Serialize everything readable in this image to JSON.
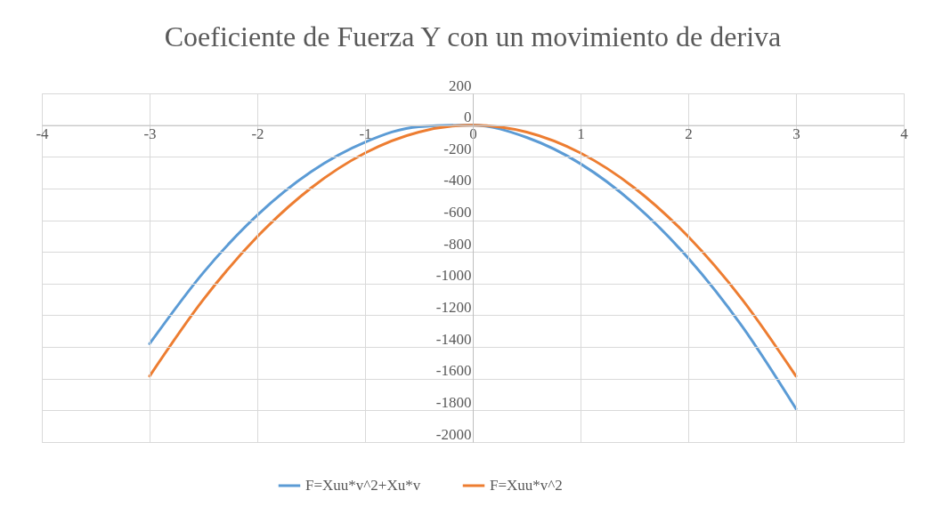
{
  "chart_data": {
    "type": "line",
    "title": "Coeficiente de Fuerza Y con un movimiento de deriva",
    "x": [
      -3,
      -2.5,
      -2,
      -1.5,
      -1,
      -0.5,
      0,
      0.5,
      1,
      1.5,
      2,
      2.5,
      3
    ],
    "series": [
      {
        "name": "F=Xuu*v^2+Xu*v",
        "color": "#5b9bd5",
        "values": [
          -1380,
          -930,
          -568,
          -294,
          -108,
          -10,
          0,
          -78,
          -244,
          -498,
          -840,
          -1270,
          -1790
        ]
      },
      {
        "name": "F=Xuu*v^2",
        "color": "#ed7d31",
        "values": [
          -1584,
          -1100,
          -704,
          -396,
          -176,
          -44,
          0,
          -44,
          -176,
          -396,
          -704,
          -1100,
          -1584
        ]
      }
    ],
    "xlim": [
      -4,
      4
    ],
    "xticks": [
      -4,
      -3,
      -2,
      -1,
      0,
      1,
      2,
      3,
      4
    ],
    "ylim": [
      -2000,
      200
    ],
    "yticks": [
      -2000,
      -1800,
      -1600,
      -1400,
      -1200,
      -1000,
      -800,
      -600,
      -400,
      -200,
      0,
      200
    ],
    "grid": true,
    "legend": "bottom",
    "marker": "none",
    "line_style": "solid"
  }
}
